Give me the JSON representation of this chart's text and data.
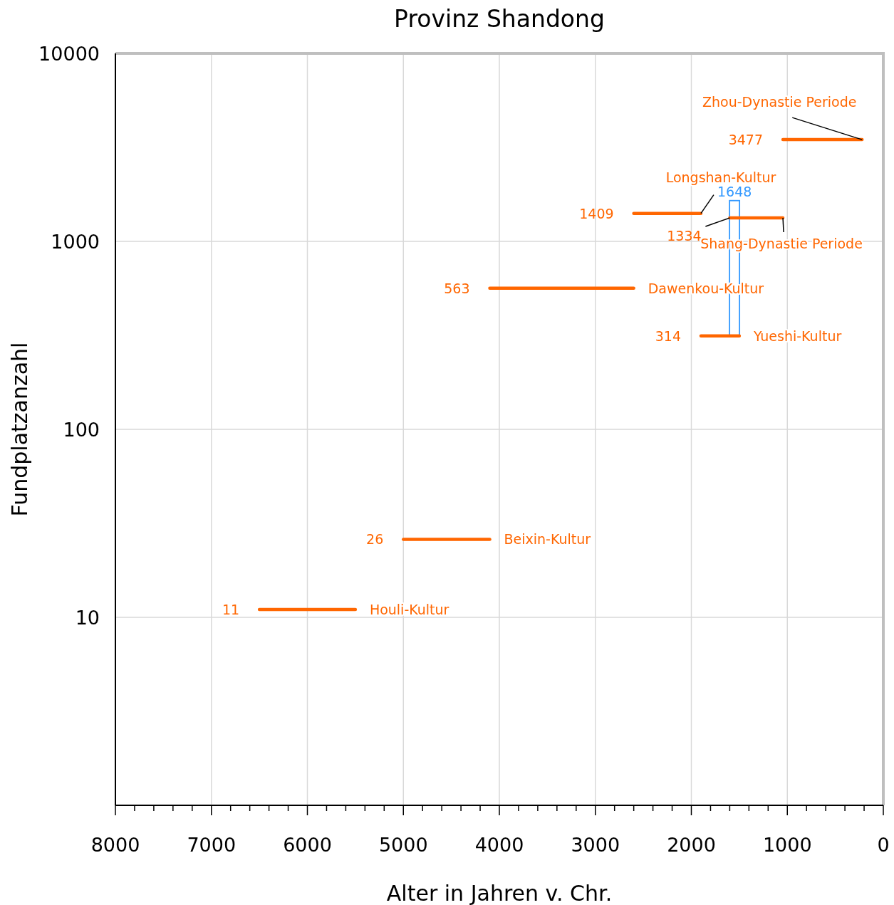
{
  "chart_data": {
    "type": "line",
    "title": "Provinz Shandong",
    "xlabel": "Alter in Jahren v. Chr.",
    "ylabel": "Fundplatzanzahl",
    "log": "y",
    "grid": true,
    "xlim": [
      8000,
      0
    ],
    "ylim": [
      1,
      10000
    ],
    "yticks": [
      10,
      100,
      1000,
      10000
    ],
    "xticks": [
      8000,
      {
        "value": 7800,
        "label": null
      },
      {
        "value": 7600,
        "label": null
      },
      {
        "value": 7400,
        "label": null
      },
      {
        "value": 7200,
        "label": null
      },
      7000,
      {
        "value": 6800,
        "label": null
      },
      {
        "value": 6600,
        "label": null
      },
      {
        "value": 6400,
        "label": null
      },
      {
        "value": 6200,
        "label": null
      },
      6000,
      {
        "value": 5800,
        "label": null
      },
      {
        "value": 5600,
        "label": null
      },
      {
        "value": 5400,
        "label": null
      },
      {
        "value": 5200,
        "label": null
      },
      5000,
      {
        "value": 4800,
        "label": null
      },
      {
        "value": 4600,
        "label": null
      },
      {
        "value": 4400,
        "label": null
      },
      {
        "value": 4200,
        "label": null
      },
      4000,
      {
        "value": 3800,
        "label": null
      },
      {
        "value": 3600,
        "label": null
      },
      {
        "value": 3400,
        "label": null
      },
      {
        "value": 3200,
        "label": null
      },
      3000,
      {
        "value": 2800,
        "label": null
      },
      {
        "value": 2600,
        "label": null
      },
      {
        "value": 2400,
        "label": null
      },
      {
        "value": 2200,
        "label": null
      },
      2000,
      {
        "value": 1800,
        "label": null
      },
      {
        "value": 1600,
        "label": null
      },
      {
        "value": 1400,
        "label": null
      },
      {
        "value": 1200,
        "label": null
      },
      1000,
      {
        "value": 800,
        "label": null
      },
      {
        "value": 600,
        "label": null
      },
      {
        "value": 400,
        "label": null
      },
      {
        "value": 200,
        "label": null
      },
      0
    ],
    "series": [
      {
        "name": "Houli-Kultur",
        "color": "#ff6600",
        "x": [
          6500,
          5500
        ],
        "values": [
          11,
          11
        ],
        "value_labels": [
          "11",
          null
        ]
      },
      {
        "name": "Beixin-Kultur",
        "color": "#ff6600",
        "x": [
          5000,
          4100
        ],
        "values": [
          26,
          26
        ],
        "value_labels": [
          "26",
          null
        ]
      },
      {
        "name": "Dawenkou-Kultur",
        "color": "#ff6600",
        "x": [
          4100,
          2600
        ],
        "values": [
          563,
          563
        ],
        "value_labels": [
          "563",
          null
        ]
      },
      {
        "name": "Yueshi-Kultur",
        "color": "#ff6600",
        "x": [
          1900,
          1500
        ],
        "values": [
          314,
          314
        ],
        "value_labels": [
          "314",
          null
        ]
      },
      {
        "name": "Longshan-Kultur",
        "color": "#ff6600",
        "x": [
          2600,
          1900
        ],
        "values": [
          1409,
          1409
        ],
        "value_labels": [
          "1409",
          null
        ]
      },
      {
        "name": "Shang-Dynastie Periode",
        "color": "#ff6600",
        "x": [
          1600,
          1046
        ],
        "values": [
          1334,
          1334
        ],
        "value_labels": [
          "1334",
          null
        ]
      },
      {
        "name": "Zhou-Dynastie Periode",
        "color": "#ff6600",
        "x": [
          1046,
          221
        ],
        "values": [
          3477,
          3477
        ],
        "value_labels": [
          "3477",
          null
        ]
      },
      {
        "type": "bar",
        "color": "#3399ff",
        "x": [
          1550
        ],
        "base": [
          314
        ],
        "values": [
          1334
        ],
        "value_labels": [
          "1648"
        ]
      }
    ]
  }
}
